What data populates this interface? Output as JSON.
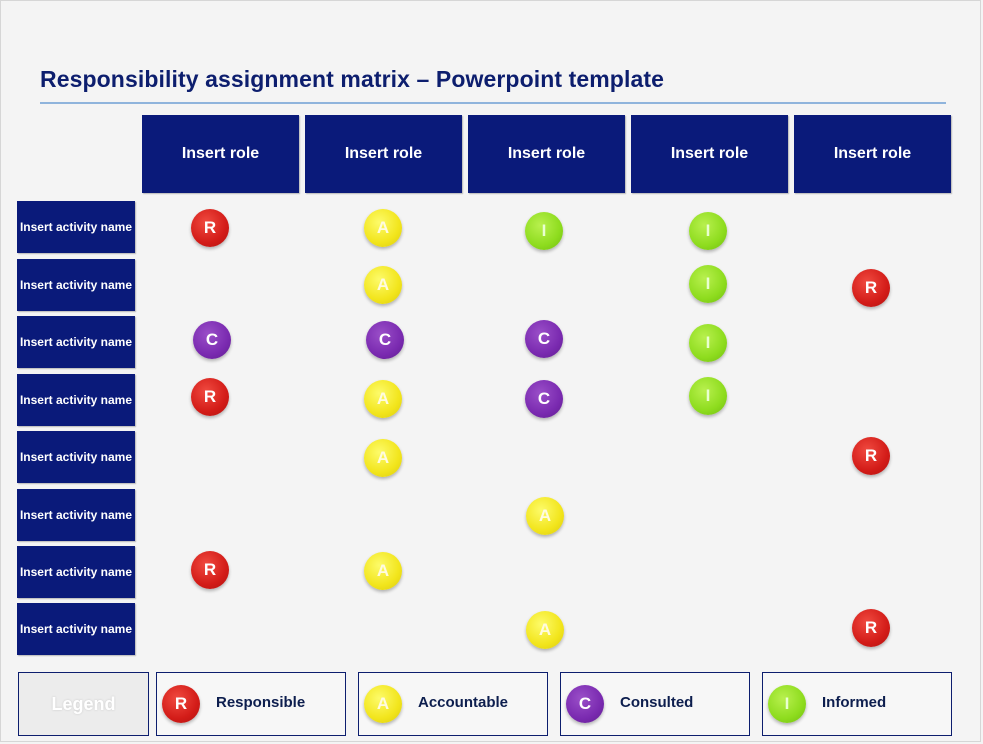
{
  "title": "Responsibility assignment matrix – Powerpoint template",
  "roles": [
    "Insert role",
    "Insert role",
    "Insert role",
    "Insert role",
    "Insert role"
  ],
  "activities": [
    {
      "label": "Insert activity name",
      "cells": [
        "R",
        "A",
        "I",
        "I",
        ""
      ]
    },
    {
      "label": "Insert activity name",
      "cells": [
        "",
        "A",
        "",
        "I",
        "R"
      ]
    },
    {
      "label": "Insert activity name",
      "cells": [
        "C",
        "C",
        "C",
        "I",
        ""
      ]
    },
    {
      "label": "Insert activity name",
      "cells": [
        "R",
        "A",
        "C",
        "I",
        ""
      ]
    },
    {
      "label": "Insert activity name",
      "cells": [
        "",
        "A",
        "",
        "",
        "R"
      ]
    },
    {
      "label": "Insert activity name",
      "cells": [
        "",
        "",
        "A",
        "",
        ""
      ]
    },
    {
      "label": "Insert activity name",
      "cells": [
        "R",
        "A",
        "",
        "",
        ""
      ]
    },
    {
      "label": "Insert activity name",
      "cells": [
        "",
        "",
        "A",
        "",
        "R"
      ]
    }
  ],
  "legend": {
    "label": "Legend",
    "items": [
      {
        "letter": "R",
        "text": "Responsible",
        "color": "#d31c18"
      },
      {
        "letter": "A",
        "text": "Accountable",
        "color": "#f2e51c"
      },
      {
        "letter": "C",
        "text": "Consulted",
        "color": "#7a2ab0"
      },
      {
        "letter": "I",
        "text": "Informed",
        "color": "#8edc1e"
      }
    ]
  },
  "colors": {
    "header_fill": "#0a1a7a",
    "title_text": "#0d1e6e",
    "title_rule": "#8fb4dc"
  }
}
